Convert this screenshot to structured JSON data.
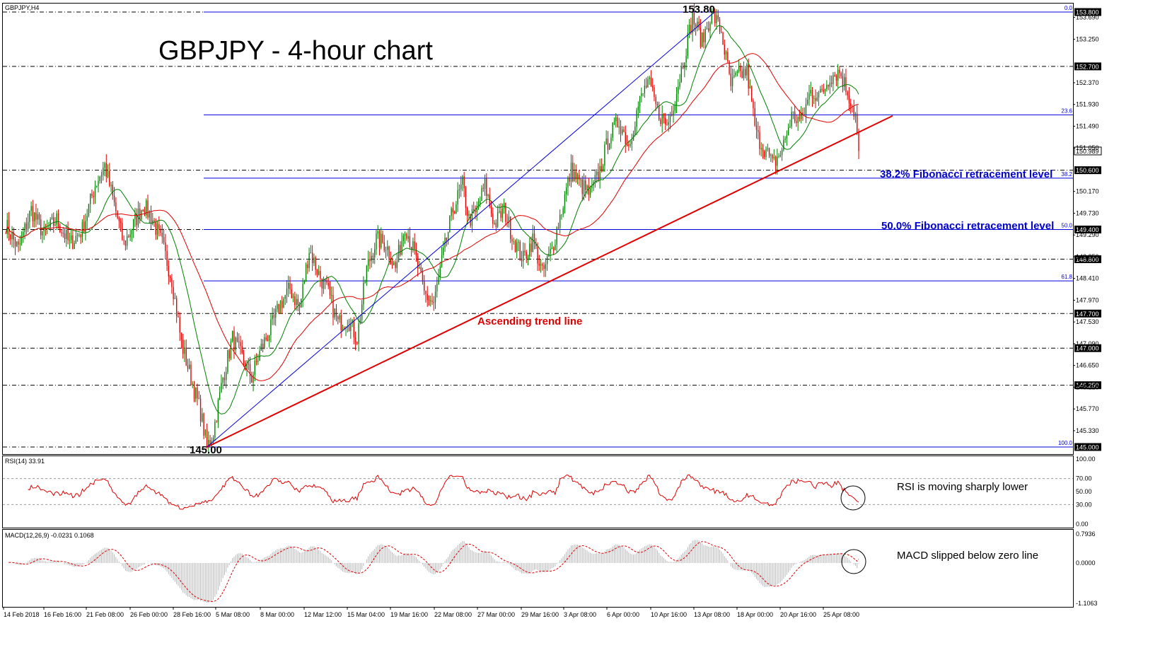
{
  "header": {
    "symbol": "GBPJPY,H4",
    "title": "GBPJPY - 4-hour chart"
  },
  "colors": {
    "fib": "#0000dd",
    "trend": "#e00000",
    "ma_fast": "#008000",
    "ma_slow": "#e00000",
    "candle_up": "#008000",
    "candle_down": "#e00000",
    "annotation_blue": "#0000cc",
    "annotation_red": "#e00000",
    "dash_level": "#000000"
  },
  "chart_data": [
    {
      "type": "candlestick",
      "name": "price",
      "ylim": [
        144.98,
        153.85
      ],
      "y_ticks": [
        "153.690",
        "153.250",
        "152.370",
        "151.930",
        "151.490",
        "151.050",
        "150.170",
        "149.730",
        "149.290",
        "148.850",
        "148.410",
        "147.970",
        "147.530",
        "147.090",
        "146.650",
        "146.210",
        "145.770",
        "145.330"
      ],
      "y_tick_values": [
        153.69,
        153.25,
        152.37,
        151.93,
        151.49,
        151.05,
        150.17,
        149.73,
        149.29,
        148.85,
        148.41,
        147.97,
        147.53,
        147.09,
        146.65,
        146.21,
        145.77,
        145.33
      ],
      "x_ticks": [
        "14 Feb 2018",
        "16 Feb 16:00",
        "21 Feb 08:00",
        "26 Feb 00:00",
        "28 Feb 16:00",
        "5 Mar 08:00",
        "8 Mar 00:00",
        "12 Mar 12:00",
        "15 Mar 04:00",
        "19 Mar 16:00",
        "22 Mar 08:00",
        "27 Mar 00:00",
        "29 Mar 16:00",
        "3 Apr 08:00",
        "6 Apr 00:00",
        "10 Apr 16:00",
        "13 Apr 08:00",
        "18 Apr 00:00",
        "20 Apr 16:00",
        "25 Apr 08:00"
      ],
      "horizontal_levels": [
        {
          "value": 153.8,
          "label": "153.800"
        },
        {
          "value": 152.7,
          "label": "152.700"
        },
        {
          "value": 150.6,
          "label": "150.600"
        },
        {
          "value": 149.4,
          "label": "149.400"
        },
        {
          "value": 148.8,
          "label": "148.800"
        },
        {
          "value": 147.7,
          "label": "147.700"
        },
        {
          "value": 147.0,
          "label": "147.000"
        },
        {
          "value": 146.25,
          "label": "146.250"
        },
        {
          "value": 145.0,
          "label": "145.000"
        }
      ],
      "fibonacci": [
        {
          "ratio": "0.0",
          "value": 153.8
        },
        {
          "ratio": "23.6",
          "value": 151.72
        },
        {
          "ratio": "38.2",
          "value": 150.44
        },
        {
          "ratio": "50.0",
          "value": 149.4
        },
        {
          "ratio": "61.8",
          "value": 148.36
        },
        {
          "ratio": "100.0",
          "value": 145.0
        }
      ],
      "current_price_label": "150.989",
      "current_price": 150.989,
      "low_label": "145.00",
      "high_label": "153.80",
      "low": 145.0,
      "high": 153.8,
      "trend_line": {
        "from_value": 145.0,
        "to_value": 151.7
      },
      "annotations": {
        "fib382": "38.2% Fibonacci retracement level",
        "fib50": "50.0% Fibonacci retracement level",
        "trend": "Ascending trend line"
      },
      "series": [
        {
          "name": "",
          "kind": "fast moving average"
        },
        {
          "name": "",
          "kind": "slow moving average"
        }
      ],
      "anchors": [
        [
          0,
          149.5
        ],
        [
          8,
          149.0
        ],
        [
          16,
          149.8
        ],
        [
          24,
          149.3
        ],
        [
          32,
          149.6
        ],
        [
          40,
          149.1
        ],
        [
          48,
          149.4
        ],
        [
          56,
          150.3
        ],
        [
          62,
          150.7
        ],
        [
          68,
          149.9
        ],
        [
          74,
          149.1
        ],
        [
          80,
          149.5
        ],
        [
          86,
          149.9
        ],
        [
          92,
          149.6
        ],
        [
          98,
          149.1
        ],
        [
          104,
          148.4
        ],
        [
          110,
          147.1
        ],
        [
          116,
          146.4
        ],
        [
          122,
          145.7
        ],
        [
          126,
          145.0
        ],
        [
          130,
          145.3
        ],
        [
          136,
          146.4
        ],
        [
          142,
          147.2
        ],
        [
          148,
          146.8
        ],
        [
          154,
          146.4
        ],
        [
          160,
          147.0
        ],
        [
          166,
          147.4
        ],
        [
          172,
          147.9
        ],
        [
          178,
          148.2
        ],
        [
          184,
          147.8
        ],
        [
          190,
          149.0
        ],
        [
          196,
          148.5
        ],
        [
          202,
          148.1
        ],
        [
          208,
          147.5
        ],
        [
          214,
          147.6
        ],
        [
          220,
          147.2
        ],
        [
          226,
          148.6
        ],
        [
          232,
          149.2
        ],
        [
          238,
          149.1
        ],
        [
          244,
          148.6
        ],
        [
          250,
          149.5
        ],
        [
          256,
          148.9
        ],
        [
          262,
          148.1
        ],
        [
          268,
          147.9
        ],
        [
          274,
          148.9
        ],
        [
          280,
          149.8
        ],
        [
          286,
          150.3
        ],
        [
          290,
          149.6
        ],
        [
          294,
          149.7
        ],
        [
          300,
          150.3
        ],
        [
          306,
          149.5
        ],
        [
          312,
          149.8
        ],
        [
          318,
          149.2
        ],
        [
          324,
          148.8
        ],
        [
          330,
          149.2
        ],
        [
          336,
          148.5
        ],
        [
          342,
          149.0
        ],
        [
          348,
          149.8
        ],
        [
          354,
          150.6
        ],
        [
          360,
          150.3
        ],
        [
          366,
          150.1
        ],
        [
          372,
          150.6
        ],
        [
          378,
          151.3
        ],
        [
          384,
          151.6
        ],
        [
          390,
          151.1
        ],
        [
          396,
          151.9
        ],
        [
          402,
          152.4
        ],
        [
          408,
          151.8
        ],
        [
          414,
          151.5
        ],
        [
          420,
          152.2
        ],
        [
          426,
          153.1
        ],
        [
          430,
          153.7
        ],
        [
          436,
          153.2
        ],
        [
          442,
          153.8
        ],
        [
          448,
          153.4
        ],
        [
          454,
          152.3
        ],
        [
          458,
          152.5
        ],
        [
          464,
          152.6
        ],
        [
          470,
          151.3
        ],
        [
          476,
          151.0
        ],
        [
          480,
          150.7
        ],
        [
          486,
          151.0
        ],
        [
          492,
          151.7
        ],
        [
          498,
          151.6
        ],
        [
          504,
          152.2
        ],
        [
          510,
          152.1
        ],
        [
          516,
          152.5
        ],
        [
          522,
          152.6
        ],
        [
          528,
          152.1
        ],
        [
          532,
          151.7
        ],
        [
          534,
          150.99
        ]
      ]
    },
    {
      "type": "line",
      "name": "RSI(14)",
      "label": "RSI(14) 33.91",
      "current_value": 33.91,
      "ylim": [
        0,
        100
      ],
      "y_ticks": [
        "100.00",
        "70.00",
        "50.00",
        "30.00",
        "0.00"
      ],
      "y_tick_values": [
        100,
        70,
        50,
        30,
        0
      ],
      "dash_levels": [
        70,
        30
      ],
      "annotation": "RSI is moving sharply lower"
    },
    {
      "type": "bar",
      "name": "MACD(12,26,9)",
      "label": "MACD(12,26,9) -0.0231 0.1068",
      "macd_value": -0.0231,
      "signal_value": 0.1068,
      "ylim": [
        -1.1063,
        0.7936
      ],
      "y_ticks": [
        "0.7936",
        "0.0000",
        "-1.1063"
      ],
      "y_tick_values": [
        0.7936,
        0,
        -1.1063
      ],
      "annotation": "MACD slipped below zero line"
    }
  ]
}
